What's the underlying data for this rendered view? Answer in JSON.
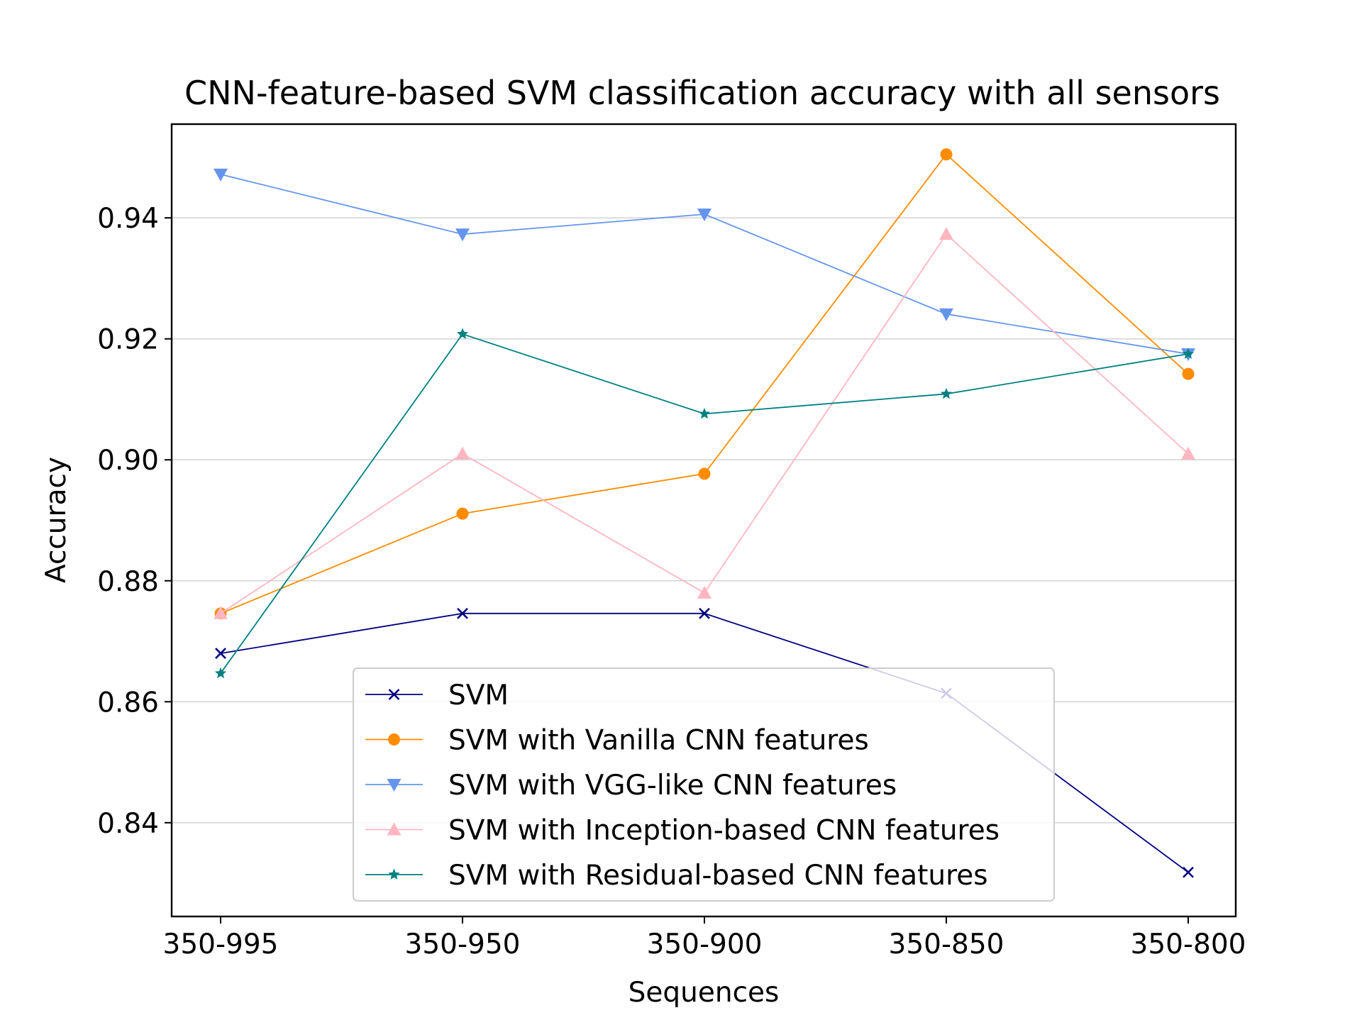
{
  "chart_data": {
    "type": "line",
    "title": "CNN-feature-based SVM classification accuracy with all sensors",
    "xlabel": "Sequences",
    "ylabel": "Accuracy",
    "categories": [
      "350-995",
      "350-950",
      "350-900",
      "350-850",
      "350-800"
    ],
    "ylim": [
      0.8245,
      0.9555
    ],
    "yticks": [
      0.84,
      0.86,
      0.88,
      0.9,
      0.92,
      0.94
    ],
    "ytick_labels": [
      "0.84",
      "0.86",
      "0.88",
      "0.90",
      "0.92",
      "0.94"
    ],
    "grid": "horizontal",
    "legend_position": "lower-center",
    "series": [
      {
        "name": "SVM",
        "color": "#000080",
        "marker": "x",
        "values": [
          0.868,
          0.8746,
          0.8746,
          0.8614,
          0.8318
        ]
      },
      {
        "name": "SVM with Vanilla CNN features",
        "color": "#ff8c00",
        "marker": "circle",
        "values": [
          0.8746,
          0.8911,
          0.8977,
          0.9505,
          0.9142
        ]
      },
      {
        "name": "SVM with VGG-like CNN features",
        "color": "#6495ed",
        "marker": "triangle-down",
        "values": [
          0.9472,
          0.9373,
          0.9406,
          0.9241,
          0.9175
        ]
      },
      {
        "name": "SVM with Inception-based CNN features",
        "color": "#ffb6c1",
        "marker": "triangle-up",
        "values": [
          0.8746,
          0.901,
          0.878,
          0.9373,
          0.901
        ]
      },
      {
        "name": "SVM with Residual-based CNN features",
        "color": "#008080",
        "marker": "star",
        "values": [
          0.8647,
          0.9208,
          0.9076,
          0.9109,
          0.9175
        ]
      }
    ]
  }
}
